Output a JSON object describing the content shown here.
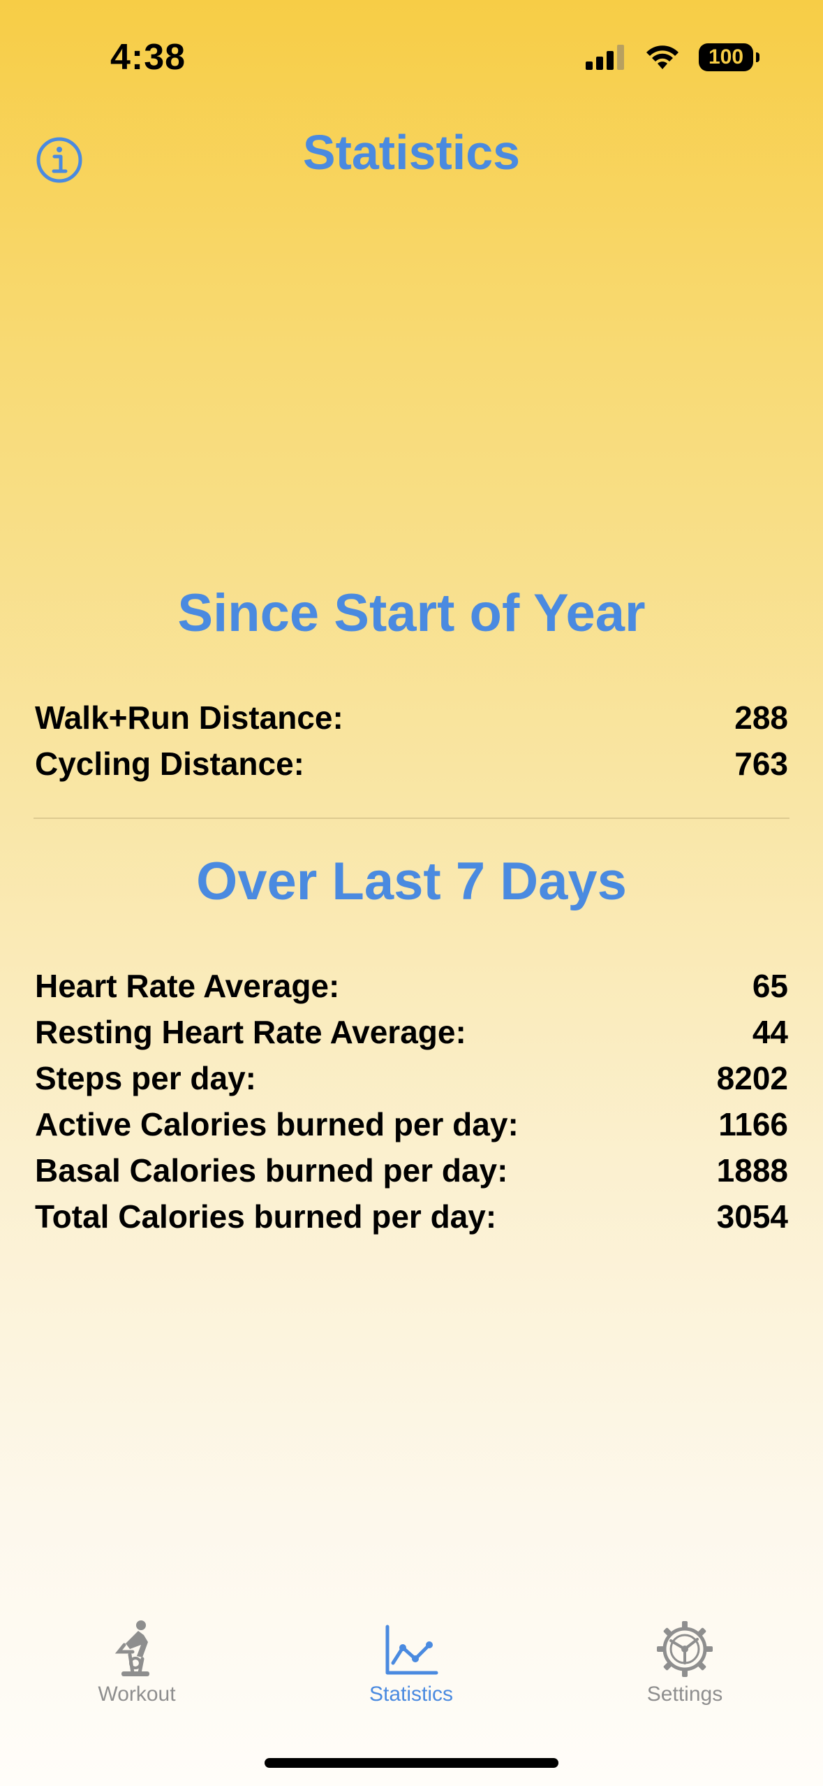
{
  "status_bar": {
    "time": "4:38",
    "battery": "100"
  },
  "nav": {
    "title": "Statistics"
  },
  "year_section": {
    "heading": "Since Start of Year",
    "rows": [
      {
        "label": "Walk+Run Distance:",
        "value": "288"
      },
      {
        "label": "Cycling Distance:",
        "value": "763"
      }
    ]
  },
  "week_section": {
    "heading": "Over Last 7 Days",
    "rows": [
      {
        "label": "Heart Rate Average:",
        "value": "65"
      },
      {
        "label": "Resting Heart Rate Average:",
        "value": "44"
      },
      {
        "label": "Steps per day:",
        "value": "8202"
      },
      {
        "label": "Active Calories burned per day:",
        "value": "1166"
      },
      {
        "label": "Basal Calories burned per day:",
        "value": "1888"
      },
      {
        "label": "Total Calories burned per day:",
        "value": "3054"
      }
    ]
  },
  "tab_bar": {
    "tabs": [
      {
        "label": "Workout",
        "icon": "indoor-cycle-icon",
        "active": false
      },
      {
        "label": "Statistics",
        "icon": "line-chart-icon",
        "active": true
      },
      {
        "label": "Settings",
        "icon": "gear-icon",
        "active": false
      }
    ]
  },
  "colors": {
    "accent": "#4a8ae0",
    "inactive": "#8e8e8e",
    "background_top": "#f7cd46",
    "background_bottom": "#fffdf9"
  }
}
